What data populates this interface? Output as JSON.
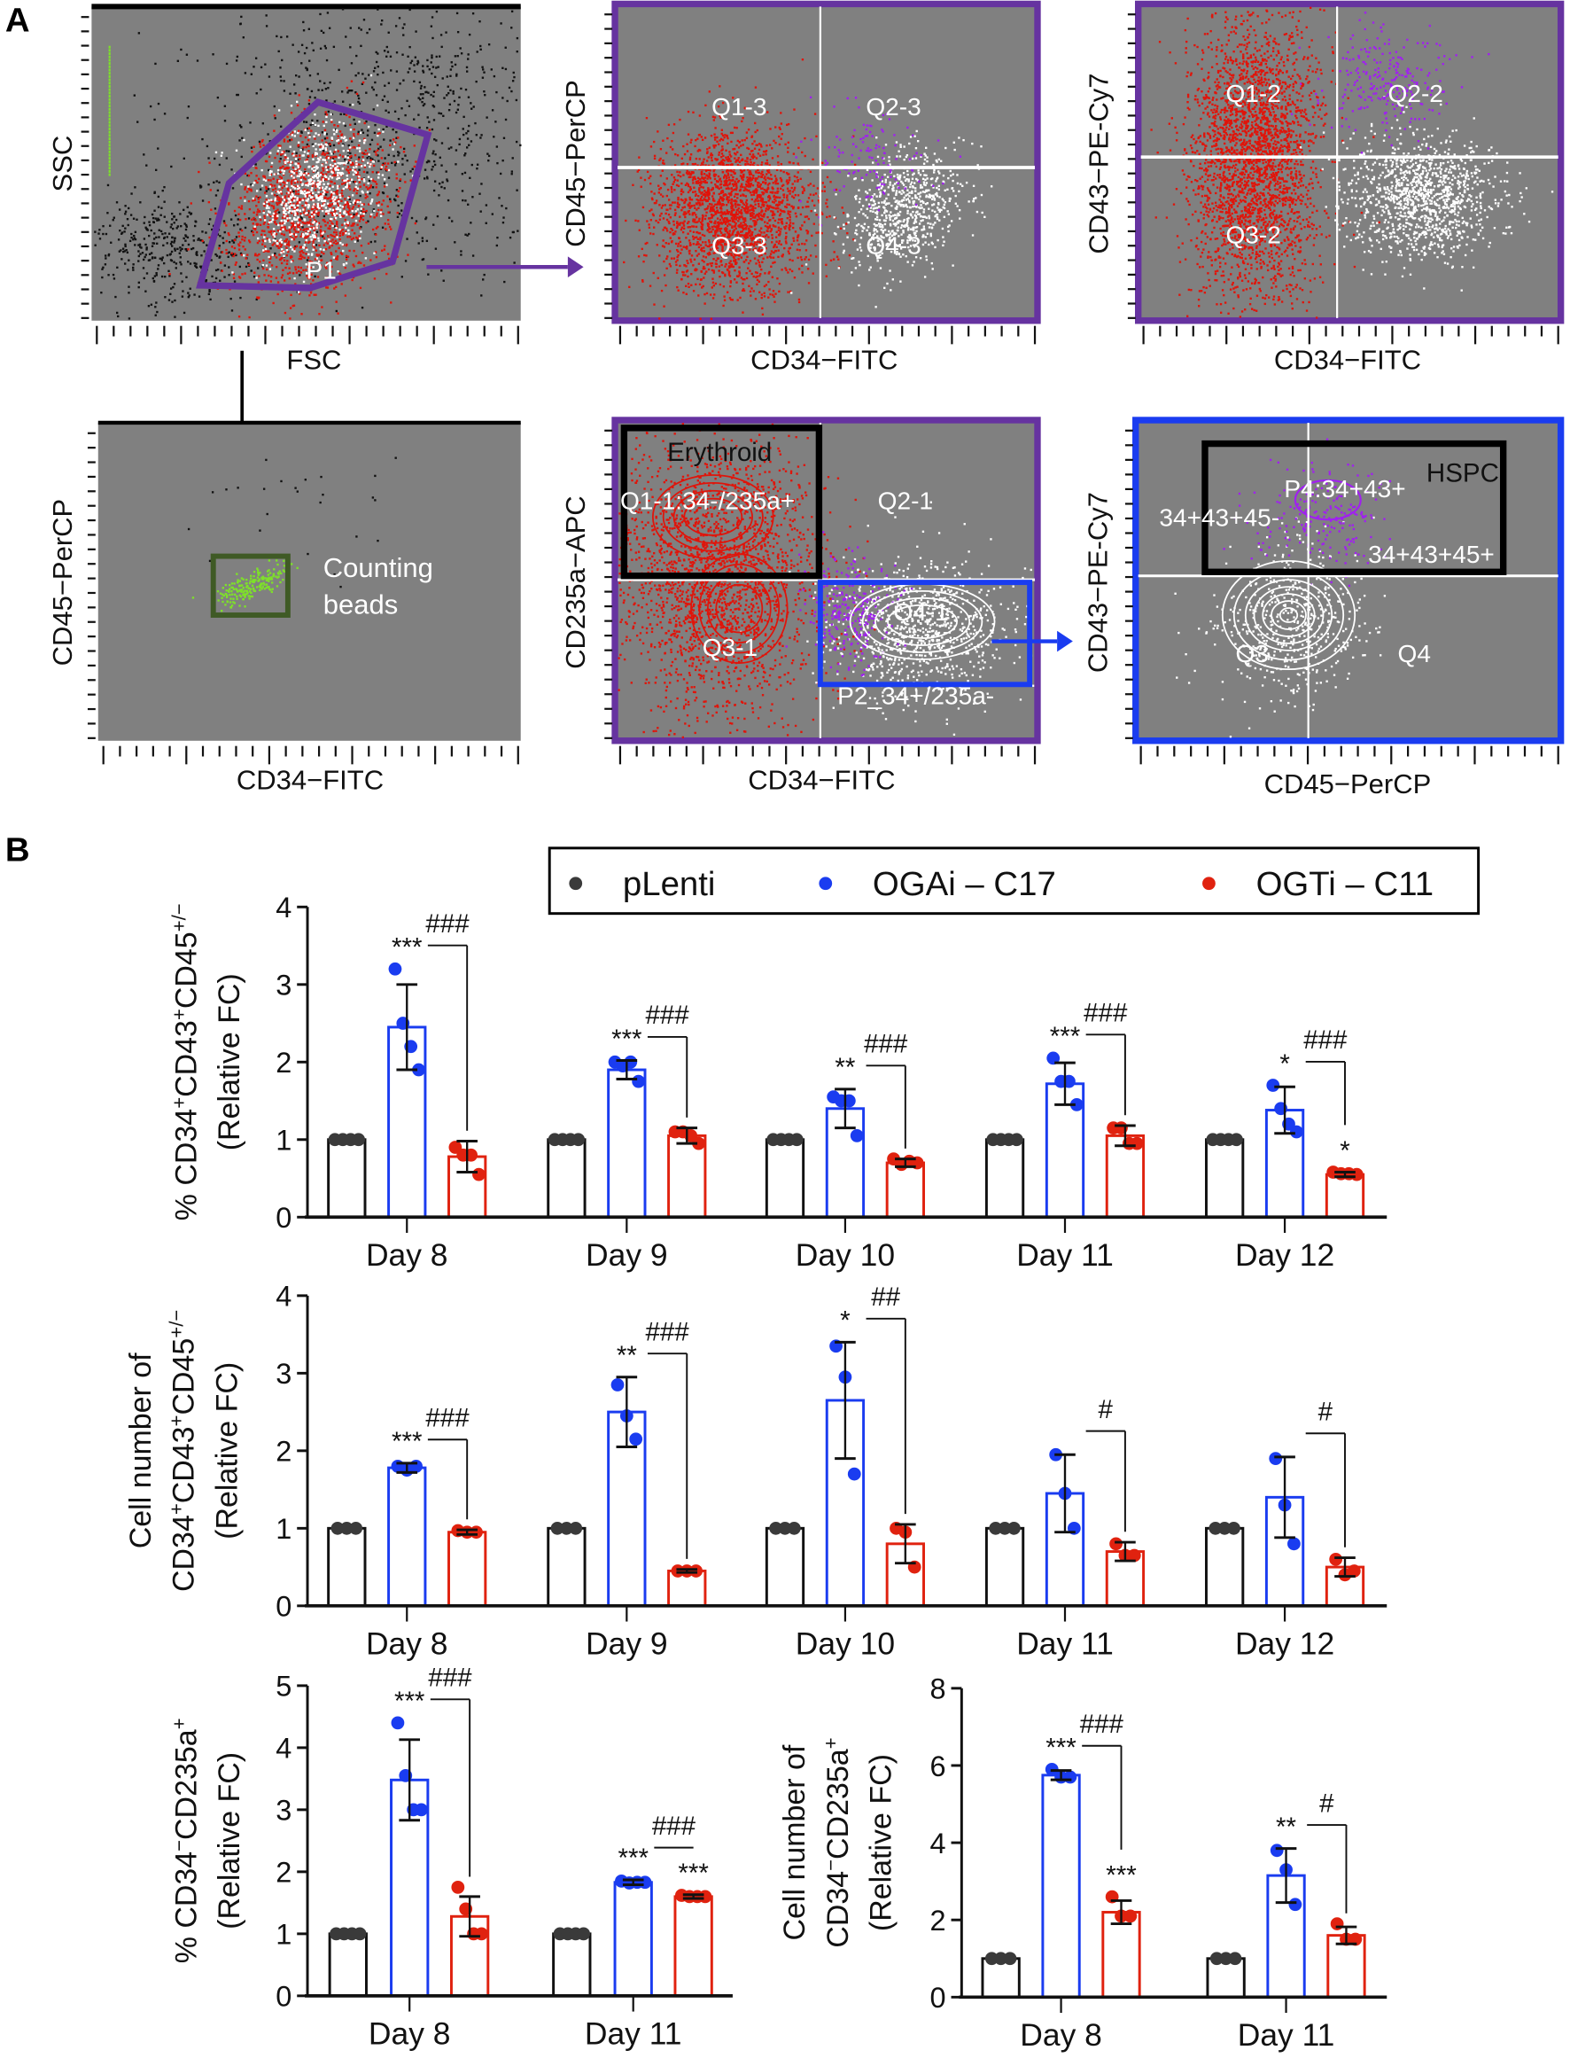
{
  "panel_a": {
    "letter": "A",
    "plots": [
      {
        "id": "fsc-ssc",
        "xlabel": "FSC",
        "ylabel": "SSC",
        "gate_label": "P1"
      },
      {
        "id": "cd34-cd45",
        "xlabel": "CD34−FITC",
        "ylabel": "CD45−PerCP",
        "quadrants": [
          "Q1-3",
          "Q2-3",
          "Q3-3",
          "Q4-3"
        ]
      },
      {
        "id": "cd34-cd43",
        "xlabel": "CD34−FITC",
        "ylabel": "CD43−PE-Cy7",
        "quadrants": [
          "Q1-2",
          "Q2-2",
          "Q3-2"
        ]
      },
      {
        "id": "beads",
        "xlabel": "CD34−FITC",
        "ylabel": "CD45−PerCP",
        "gate_label_1": "Counting",
        "gate_label_2": "beads"
      },
      {
        "id": "cd34-cd235a",
        "xlabel": "CD34−FITC",
        "ylabel": "CD235a−APC",
        "gate_title": "Erythroid",
        "quadrants": [
          "Q1-1:34-/235a+",
          "Q2-1",
          "Q3-1",
          "Q4-1"
        ],
        "gate_label": "P2_34+/235a-"
      },
      {
        "id": "cd45-cd43",
        "xlabel": "CD45−PerCP",
        "ylabel": "CD43−PE-Cy7",
        "gate_title": "HSPC",
        "gate_label": "P4:34+43+",
        "quadrants": [
          "34+43+45-",
          "34+43+45+",
          "Q3",
          "Q4"
        ]
      }
    ]
  },
  "panel_b": {
    "letter": "B",
    "legend": [
      {
        "name": "pLenti",
        "color": "#3a3a3a"
      },
      {
        "name": "OGAi – C17",
        "color": "#1a3cf0"
      },
      {
        "name": "OGTi – C11",
        "color": "#e0220f"
      }
    ]
  },
  "chart_data": [
    {
      "type": "bar",
      "ylabel": [
        [
          {
            "t": "% CD34"
          },
          {
            "t": "+",
            "sup": true
          },
          {
            "t": "CD43"
          },
          {
            "t": "+",
            "sup": true
          },
          {
            "t": "CD45"
          },
          {
            "t": "+/−",
            "sup": true
          }
        ],
        [
          {
            "t": "(Relative FC)"
          }
        ]
      ],
      "ylim": [
        0,
        4
      ],
      "yticks": [
        0,
        1,
        2,
        3,
        4
      ],
      "categories": [
        "Day 8",
        "Day 9",
        "Day 10",
        "Day 11",
        "Day 12"
      ],
      "series": [
        {
          "name": "pLenti",
          "means": [
            1,
            1,
            1,
            1,
            1
          ],
          "sd": [
            0,
            0,
            0,
            0,
            0
          ],
          "points": [
            [
              1,
              1,
              1,
              1
            ],
            [
              1,
              1,
              1,
              1
            ],
            [
              1,
              1,
              1,
              1
            ],
            [
              1,
              1,
              1,
              1
            ],
            [
              1,
              1,
              1,
              1
            ]
          ]
        },
        {
          "name": "OGAi – C17",
          "means": [
            2.45,
            1.9,
            1.4,
            1.72,
            1.38
          ],
          "sd": [
            0.55,
            0.12,
            0.25,
            0.27,
            0.3
          ],
          "points": [
            [
              3.2,
              2.5,
              2.2,
              1.9
            ],
            [
              2.0,
              1.95,
              2.0,
              1.75
            ],
            [
              1.55,
              1.5,
              1.5,
              1.05
            ],
            [
              2.05,
              1.75,
              1.75,
              1.45
            ],
            [
              1.7,
              1.4,
              1.2,
              1.1
            ]
          ]
        },
        {
          "name": "OGTi – C11",
          "means": [
            0.78,
            1.05,
            0.7,
            1.05,
            0.55
          ],
          "sd": [
            0.2,
            0.1,
            0.05,
            0.13,
            0.03
          ],
          "points": [
            [
              0.9,
              0.8,
              0.8,
              0.55
            ],
            [
              1.1,
              1.1,
              1.05,
              0.95
            ],
            [
              0.75,
              0.68,
              0.72,
              0.7
            ],
            [
              1.15,
              1.15,
              0.95,
              0.95
            ],
            [
              0.58,
              0.56,
              0.56,
              0.55
            ]
          ]
        }
      ],
      "stars_ogai": [
        "***",
        "***",
        "**",
        "***",
        "*"
      ],
      "stars_ogti": [
        "",
        "",
        "",
        "",
        "*"
      ],
      "hash": [
        "###",
        "###",
        "###",
        "###",
        "###"
      ]
    },
    {
      "type": "bar",
      "ylabel": [
        [
          {
            "t": "Cell number of"
          }
        ],
        [
          {
            "t": "CD34"
          },
          {
            "t": "+",
            "sup": true
          },
          {
            "t": "CD43"
          },
          {
            "t": "+",
            "sup": true
          },
          {
            "t": "CD45"
          },
          {
            "t": "+/−",
            "sup": true
          }
        ],
        [
          {
            "t": "(Relative FC)"
          }
        ]
      ],
      "ylim": [
        0,
        4
      ],
      "yticks": [
        0,
        1,
        2,
        3,
        4
      ],
      "categories": [
        "Day 8",
        "Day 9",
        "Day 10",
        "Day 11",
        "Day 12"
      ],
      "series": [
        {
          "name": "pLenti",
          "means": [
            1,
            1,
            1,
            1,
            1
          ],
          "sd": [
            0,
            0,
            0,
            0,
            0
          ],
          "points": [
            [
              1,
              1,
              1
            ],
            [
              1,
              1,
              1
            ],
            [
              1,
              1,
              1
            ],
            [
              1,
              1,
              1
            ],
            [
              1,
              1,
              1
            ]
          ]
        },
        {
          "name": "OGAi – C17",
          "means": [
            1.78,
            2.5,
            2.65,
            1.45,
            1.4
          ],
          "sd": [
            0.06,
            0.45,
            0.75,
            0.5,
            0.52
          ],
          "points": [
            [
              1.8,
              1.75,
              1.8
            ],
            [
              2.85,
              2.45,
              2.15
            ],
            [
              3.35,
              2.95,
              1.7
            ],
            [
              1.95,
              1.45,
              1.0
            ],
            [
              1.9,
              1.3,
              0.8
            ]
          ]
        },
        {
          "name": "OGTi – C11",
          "means": [
            0.95,
            0.45,
            0.8,
            0.7,
            0.5
          ],
          "sd": [
            0.03,
            0.02,
            0.25,
            0.12,
            0.12
          ],
          "points": [
            [
              0.97,
              0.95,
              0.95
            ],
            [
              0.45,
              0.45,
              0.45
            ],
            [
              1.0,
              0.95,
              0.5
            ],
            [
              0.8,
              0.65,
              0.65
            ],
            [
              0.6,
              0.4,
              0.45
            ]
          ]
        }
      ],
      "stars_ogai": [
        "***",
        "**",
        "*",
        "",
        ""
      ],
      "stars_ogti": [
        "",
        "",
        "",
        "",
        ""
      ],
      "hash": [
        "###",
        "###",
        "##",
        "#",
        "#"
      ]
    },
    {
      "type": "bar",
      "ylabel": [
        [
          {
            "t": "% CD34"
          },
          {
            "t": "−",
            "sup": true
          },
          {
            "t": "CD235a"
          },
          {
            "t": "+",
            "sup": true
          }
        ],
        [
          {
            "t": "(Relative FC)"
          }
        ]
      ],
      "ylim": [
        0,
        5
      ],
      "yticks": [
        0,
        1,
        2,
        3,
        4,
        5
      ],
      "categories": [
        "Day 8",
        "Day 11"
      ],
      "series": [
        {
          "name": "pLenti",
          "means": [
            1,
            1
          ],
          "sd": [
            0,
            0
          ],
          "points": [
            [
              1,
              1,
              1,
              1
            ],
            [
              1,
              1,
              1,
              1
            ]
          ]
        },
        {
          "name": "OGAi – C17",
          "means": [
            3.48,
            1.83
          ],
          "sd": [
            0.65,
            0.04
          ],
          "points": [
            [
              4.4,
              3.55,
              3.0,
              3.0
            ],
            [
              1.85,
              1.82,
              1.83,
              1.83
            ]
          ]
        },
        {
          "name": "OGTi – C11",
          "means": [
            1.28,
            1.6
          ],
          "sd": [
            0.32,
            0.03
          ],
          "points": [
            [
              1.75,
              1.4,
              1.0,
              1.0
            ],
            [
              1.62,
              1.6,
              1.6,
              1.6
            ]
          ]
        }
      ],
      "stars_ogai": [
        "***",
        "***"
      ],
      "stars_ogti": [
        "",
        "***"
      ],
      "hash": [
        "###",
        "###"
      ]
    },
    {
      "type": "bar",
      "ylabel": [
        [
          {
            "t": "Cell number of"
          }
        ],
        [
          {
            "t": "CD34"
          },
          {
            "t": "−",
            "sup": true
          },
          {
            "t": "CD235a"
          },
          {
            "t": "+",
            "sup": true
          }
        ],
        [
          {
            "t": "(Relative FC)"
          }
        ]
      ],
      "ylim": [
        0,
        8
      ],
      "yticks": [
        0,
        2,
        4,
        6,
        8
      ],
      "categories": [
        "Day 8",
        "Day 11"
      ],
      "series": [
        {
          "name": "pLenti",
          "means": [
            1,
            1
          ],
          "sd": [
            0,
            0
          ],
          "points": [
            [
              1,
              1,
              1
            ],
            [
              1,
              1,
              1
            ]
          ]
        },
        {
          "name": "OGAi – C17",
          "means": [
            5.75,
            3.15
          ],
          "sd": [
            0.12,
            0.7
          ],
          "points": [
            [
              5.9,
              5.7,
              5.7
            ],
            [
              3.8,
              3.3,
              2.4
            ]
          ]
        },
        {
          "name": "OGTi – C11",
          "means": [
            2.2,
            1.6
          ],
          "sd": [
            0.3,
            0.22
          ],
          "points": [
            [
              2.6,
              2.1,
              2.1
            ],
            [
              1.9,
              1.5,
              1.5
            ]
          ]
        }
      ],
      "stars_ogai": [
        "***",
        "**"
      ],
      "stars_ogti": [
        "***",
        ""
      ],
      "hash": [
        "###",
        "#"
      ]
    }
  ]
}
